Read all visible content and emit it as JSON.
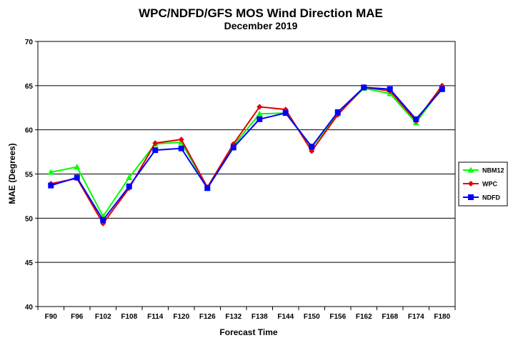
{
  "chart_data": {
    "type": "line",
    "title": "WPC/NDFD/GFS MOS Wind Direction MAE",
    "subtitle": "December 2019",
    "xlabel": "Forecast Time",
    "ylabel": "MAE (Degrees)",
    "ylim": [
      40,
      70
    ],
    "yticks": [
      40,
      45,
      50,
      55,
      60,
      65,
      70
    ],
    "grid": "horizontal",
    "legend_position": "right",
    "categories": [
      "F90",
      "F96",
      "F102",
      "F108",
      "F114",
      "F120",
      "F126",
      "F132",
      "F138",
      "F144",
      "F150",
      "F156",
      "F162",
      "F168",
      "F174",
      "F180"
    ],
    "series": [
      {
        "name": "NBM12",
        "color": "#00ff00",
        "marker": "triangle",
        "values": [
          55.2,
          55.8,
          50.2,
          54.6,
          58.4,
          58.6,
          53.4,
          58.2,
          61.8,
          61.9,
          58.0,
          61.8,
          64.7,
          64.1,
          60.8,
          64.8
        ]
      },
      {
        "name": "WPC",
        "color": "#e00000",
        "marker": "diamond",
        "values": [
          53.9,
          54.5,
          49.4,
          53.4,
          58.5,
          58.9,
          53.5,
          58.4,
          62.6,
          62.3,
          57.6,
          61.7,
          64.8,
          64.4,
          61.0,
          65.0
        ]
      },
      {
        "name": "NDFD",
        "color": "#0000ff",
        "marker": "square",
        "values": [
          53.7,
          54.6,
          49.8,
          53.6,
          57.7,
          57.9,
          53.4,
          58.0,
          61.2,
          61.9,
          58.1,
          62.0,
          64.8,
          64.6,
          61.2,
          64.6
        ]
      }
    ]
  }
}
